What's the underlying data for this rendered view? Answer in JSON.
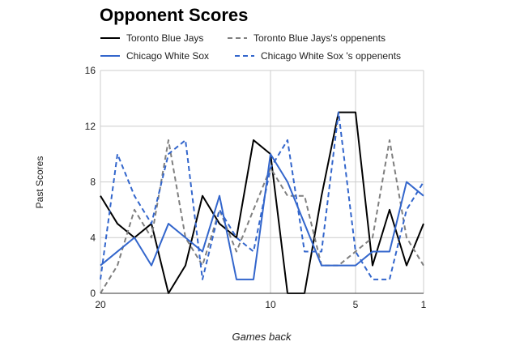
{
  "chart_data": {
    "type": "line",
    "title": "Opponent Scores",
    "xlabel": "Games back",
    "ylabel": "Past Scores",
    "xlim": [
      20,
      1
    ],
    "ylim": [
      0,
      16
    ],
    "x_ticks": [
      "20",
      "10",
      "5",
      "1"
    ],
    "y_ticks": [
      "0",
      "4",
      "8",
      "12",
      "16"
    ],
    "grid": true,
    "legend_position": "top",
    "x": [
      20,
      19,
      18,
      17,
      16,
      15,
      14,
      13,
      12,
      11,
      10,
      9,
      8,
      7,
      6,
      5,
      4,
      3,
      2,
      1
    ],
    "series": [
      {
        "name": "Toronto Blue Jays",
        "color": "#000000",
        "dash": "solid",
        "values": [
          7,
          5,
          4,
          5,
          0,
          2,
          7,
          5,
          4,
          11,
          10,
          0,
          0,
          7,
          13,
          13,
          2,
          6,
          2,
          5
        ]
      },
      {
        "name": "Toronto Blue Jays's oppenents",
        "color": "#7f7f7f",
        "dash": "dashed",
        "values": [
          0,
          2,
          6,
          4,
          11,
          4,
          2,
          6,
          3,
          6,
          9,
          7,
          7,
          2,
          2,
          3,
          4,
          11,
          4,
          2
        ]
      },
      {
        "name": "Chicago White Sox",
        "color": "#3366cc",
        "dash": "solid",
        "values": [
          2,
          3,
          4,
          2,
          5,
          4,
          3,
          7,
          1,
          1,
          10,
          8,
          5,
          2,
          2,
          2,
          3,
          3,
          8,
          7
        ]
      },
      {
        "name": "Chicago White Sox 's oppenents",
        "color": "#3366cc",
        "dash": "dashed",
        "values": [
          1,
          10,
          7,
          5,
          10,
          11,
          1,
          6,
          4,
          3,
          9,
          11,
          3,
          3,
          13,
          3,
          1,
          1,
          6,
          8
        ]
      }
    ]
  }
}
